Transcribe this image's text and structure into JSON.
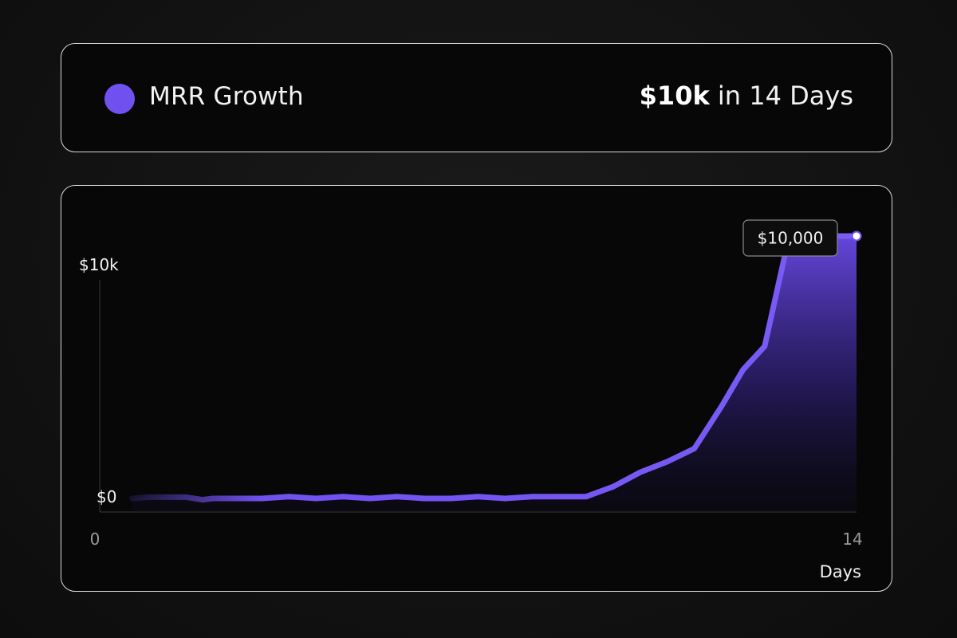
{
  "header": {
    "legend_label": "MRR Growth",
    "headline_value": "$10k",
    "headline_suffix": "in 14 Days"
  },
  "colors": {
    "accent": "#7051f0",
    "border": "#d9d9d9",
    "background": "#070707"
  },
  "chart_data": {
    "type": "area",
    "xlabel": "Days",
    "ylabel": "",
    "xlim": [
      0,
      14
    ],
    "ylim": [
      0,
      10000
    ],
    "x_ticks": [
      "0",
      "14"
    ],
    "y_ticks": [
      "$0",
      "$10k"
    ],
    "series": [
      {
        "x": [
          0.6,
          0.9,
          1.2,
          1.6,
          1.9,
          2.1,
          2.5,
          3.0,
          3.5,
          4.0,
          4.5,
          5.0,
          5.5,
          6.0,
          6.5,
          7.0,
          7.5,
          8.0,
          8.5,
          9.0,
          9.5,
          10.0,
          10.5,
          11.0,
          11.5,
          11.9,
          12.3,
          12.7,
          13.0,
          13.4,
          13.7,
          14.0
        ],
        "y": [
          0,
          50,
          50,
          50,
          -50,
          0,
          0,
          0,
          70,
          0,
          70,
          0,
          70,
          0,
          0,
          70,
          0,
          70,
          70,
          70,
          450,
          1000,
          1400,
          1900,
          3500,
          4900,
          5800,
          9500,
          9800,
          10000,
          10000,
          10000
        ]
      }
    ],
    "annotation": {
      "label": "$10,000",
      "x": 14,
      "y": 10000
    }
  }
}
